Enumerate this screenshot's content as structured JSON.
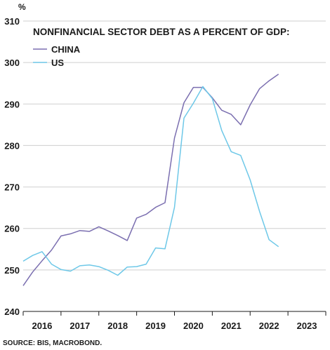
{
  "chart_data": {
    "type": "line",
    "title": "NONFINANCIAL SECTOR DEBT AS A PERCENT OF GDP:",
    "unit": "%",
    "source": "SOURCE: BIS, MACROBOND.",
    "ylim": [
      240,
      310
    ],
    "yticks": [
      240,
      250,
      260,
      270,
      280,
      290,
      300,
      310
    ],
    "xlim": [
      2015.5,
      2023.5
    ],
    "xticks": [
      {
        "label": "2016",
        "x": 2016.0
      },
      {
        "label": "2017",
        "x": 2017.0
      },
      {
        "label": "2018",
        "x": 2018.0
      },
      {
        "label": "2019",
        "x": 2019.0
      },
      {
        "label": "2020",
        "x": 2020.0
      },
      {
        "label": "2021",
        "x": 2021.0
      },
      {
        "label": "2022",
        "x": 2022.0
      },
      {
        "label": "2023",
        "x": 2023.0
      }
    ],
    "legend_position": "top-left",
    "series": [
      {
        "name": "CHINA",
        "color": "#7b6fb0",
        "points": [
          [
            2015.5,
            246.2
          ],
          [
            2015.75,
            249.5
          ],
          [
            2016.0,
            252.2
          ],
          [
            2016.25,
            254.8
          ],
          [
            2016.5,
            258.2
          ],
          [
            2016.75,
            258.7
          ],
          [
            2017.0,
            259.5
          ],
          [
            2017.25,
            259.3
          ],
          [
            2017.5,
            260.4
          ],
          [
            2017.75,
            259.4
          ],
          [
            2018.0,
            258.3
          ],
          [
            2018.25,
            257.1
          ],
          [
            2018.5,
            262.5
          ],
          [
            2018.75,
            263.4
          ],
          [
            2019.0,
            265.1
          ],
          [
            2019.25,
            266.2
          ],
          [
            2019.5,
            281.8
          ],
          [
            2019.75,
            290.3
          ],
          [
            2020.0,
            294.0
          ],
          [
            2020.25,
            294.0
          ],
          [
            2020.5,
            291.5
          ],
          [
            2020.75,
            288.5
          ],
          [
            2021.0,
            287.5
          ],
          [
            2021.25,
            285.0
          ],
          [
            2021.5,
            289.8
          ],
          [
            2021.75,
            293.7
          ],
          [
            2022.0,
            295.6
          ],
          [
            2022.25,
            297.2
          ]
        ]
      },
      {
        "name": "US",
        "color": "#6ec8e8",
        "points": [
          [
            2015.5,
            252.1
          ],
          [
            2015.75,
            253.5
          ],
          [
            2016.0,
            254.4
          ],
          [
            2016.25,
            251.4
          ],
          [
            2016.5,
            250.1
          ],
          [
            2016.75,
            249.7
          ],
          [
            2017.0,
            251.0
          ],
          [
            2017.25,
            251.2
          ],
          [
            2017.5,
            250.8
          ],
          [
            2017.75,
            249.9
          ],
          [
            2018.0,
            248.7
          ],
          [
            2018.25,
            250.7
          ],
          [
            2018.5,
            250.8
          ],
          [
            2018.75,
            251.4
          ],
          [
            2019.0,
            255.3
          ],
          [
            2019.25,
            255.1
          ],
          [
            2019.5,
            265.1
          ],
          [
            2019.75,
            286.6
          ],
          [
            2020.0,
            290.2
          ],
          [
            2020.25,
            294.2
          ],
          [
            2020.5,
            291.3
          ],
          [
            2020.75,
            283.6
          ],
          [
            2021.0,
            278.5
          ],
          [
            2021.25,
            277.6
          ],
          [
            2021.5,
            271.7
          ],
          [
            2021.75,
            264.1
          ],
          [
            2022.0,
            257.3
          ],
          [
            2022.25,
            255.6
          ]
        ]
      }
    ]
  }
}
